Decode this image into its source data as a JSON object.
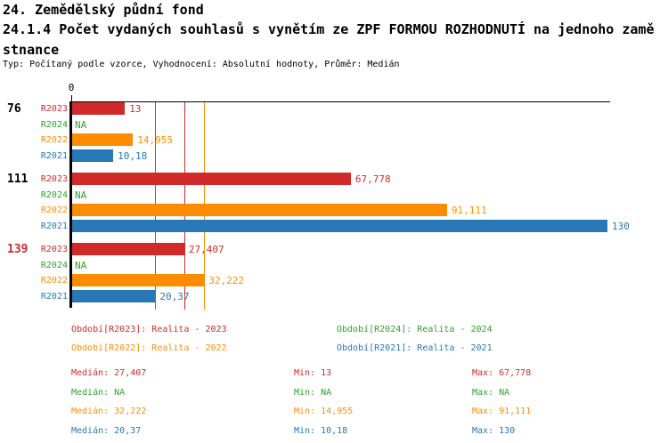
{
  "header": {
    "title_line1": "24. Zemědělský půdní fond",
    "title_line2": "24.1.4 Počet vydaných souhlasů s vynětím ze ZPF FORMOU ROZHODNUTÍ na jednoho zamě",
    "title_line3": "stnance",
    "subtitle": "Typ: Počítaný podle vzorce, Vyhodnocení: Absolutní hodnoty, Průměr: Medián"
  },
  "chart_data": {
    "type": "bar",
    "orientation": "horizontal",
    "value_axis": {
      "zero_label": "0",
      "xlim": [
        0,
        140
      ],
      "grid": false
    },
    "series": [
      {
        "id": "R2023",
        "color": "#d02a2a"
      },
      {
        "id": "R2024",
        "color": "#2ea12e"
      },
      {
        "id": "R2022",
        "color": "#ff8c00"
      },
      {
        "id": "R2021",
        "color": "#2878b5"
      }
    ],
    "groups": [
      {
        "label": "76",
        "label_color": "#000000",
        "values": [
          {
            "series": "R2023",
            "value": 13,
            "display": "13"
          },
          {
            "series": "R2024",
            "value": null,
            "display": "NA"
          },
          {
            "series": "R2022",
            "value": 14.955,
            "display": "14,955"
          },
          {
            "series": "R2021",
            "value": 10.18,
            "display": "10,18"
          }
        ]
      },
      {
        "label": "111",
        "label_color": "#000000",
        "values": [
          {
            "series": "R2023",
            "value": 67.778,
            "display": "67,778"
          },
          {
            "series": "R2024",
            "value": null,
            "display": "NA"
          },
          {
            "series": "R2022",
            "value": 91.111,
            "display": "91,111"
          },
          {
            "series": "R2021",
            "value": 130,
            "display": "130"
          }
        ]
      },
      {
        "label": "139",
        "label_color": "#d02a2a",
        "values": [
          {
            "series": "R2023",
            "value": 27.407,
            "display": "27,407"
          },
          {
            "series": "R2024",
            "value": null,
            "display": "NA"
          },
          {
            "series": "R2022",
            "value": 32.222,
            "display": "32,222"
          },
          {
            "series": "R2021",
            "value": 20.37,
            "display": "20,37"
          }
        ]
      }
    ],
    "median_lines": [
      {
        "series": "R2023",
        "value": 27.407
      },
      {
        "series": "R2022",
        "value": 32.222
      },
      {
        "series": "R2021",
        "value": 20.37
      }
    ]
  },
  "legend": {
    "items": [
      {
        "series": "R2023",
        "row": 0,
        "col": 0,
        "text": "Období[R2023]: Realita - 2023"
      },
      {
        "series": "R2024",
        "row": 0,
        "col": 1,
        "text": "Období[R2024]: Realita - 2024"
      },
      {
        "series": "R2022",
        "row": 1,
        "col": 0,
        "text": "Období[R2022]: Realita - 2022"
      },
      {
        "series": "R2021",
        "row": 1,
        "col": 1,
        "text": "Období[R2021]: Realita - 2021"
      }
    ]
  },
  "stats": {
    "labels": {
      "median": "Medián",
      "min": "Min",
      "max": "Max"
    },
    "rows": [
      {
        "series": "R2023",
        "median": "27,407",
        "min": "13",
        "max": "67,778"
      },
      {
        "series": "R2024",
        "median": "NA",
        "min": "NA",
        "max": "NA"
      },
      {
        "series": "R2022",
        "median": "32,222",
        "min": "14,955",
        "max": "91,111"
      },
      {
        "series": "R2021",
        "median": "20,37",
        "min": "10,18",
        "max": "130"
      }
    ]
  }
}
